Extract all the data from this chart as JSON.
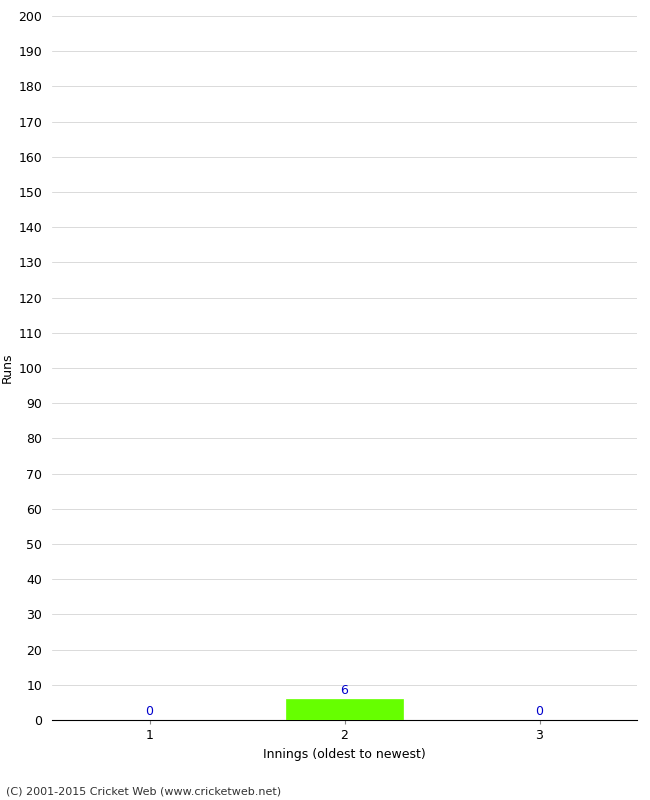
{
  "xlabel": "Innings (oldest to newest)",
  "ylabel": "Runs",
  "categories": [
    1,
    2,
    3
  ],
  "values": [
    0,
    6,
    0
  ],
  "bar_color": "#66ff00",
  "ylim": [
    0,
    200
  ],
  "ytick_step": 10,
  "background_color": "#ffffff",
  "grid_color": "#cccccc",
  "bar_width": 0.6,
  "value_label_color": "#0000cc",
  "footer": "(C) 2001-2015 Cricket Web (www.cricketweb.net)",
  "spine_color": "#000000",
  "tick_label_fontsize": 9,
  "axis_label_fontsize": 9,
  "footer_fontsize": 8
}
